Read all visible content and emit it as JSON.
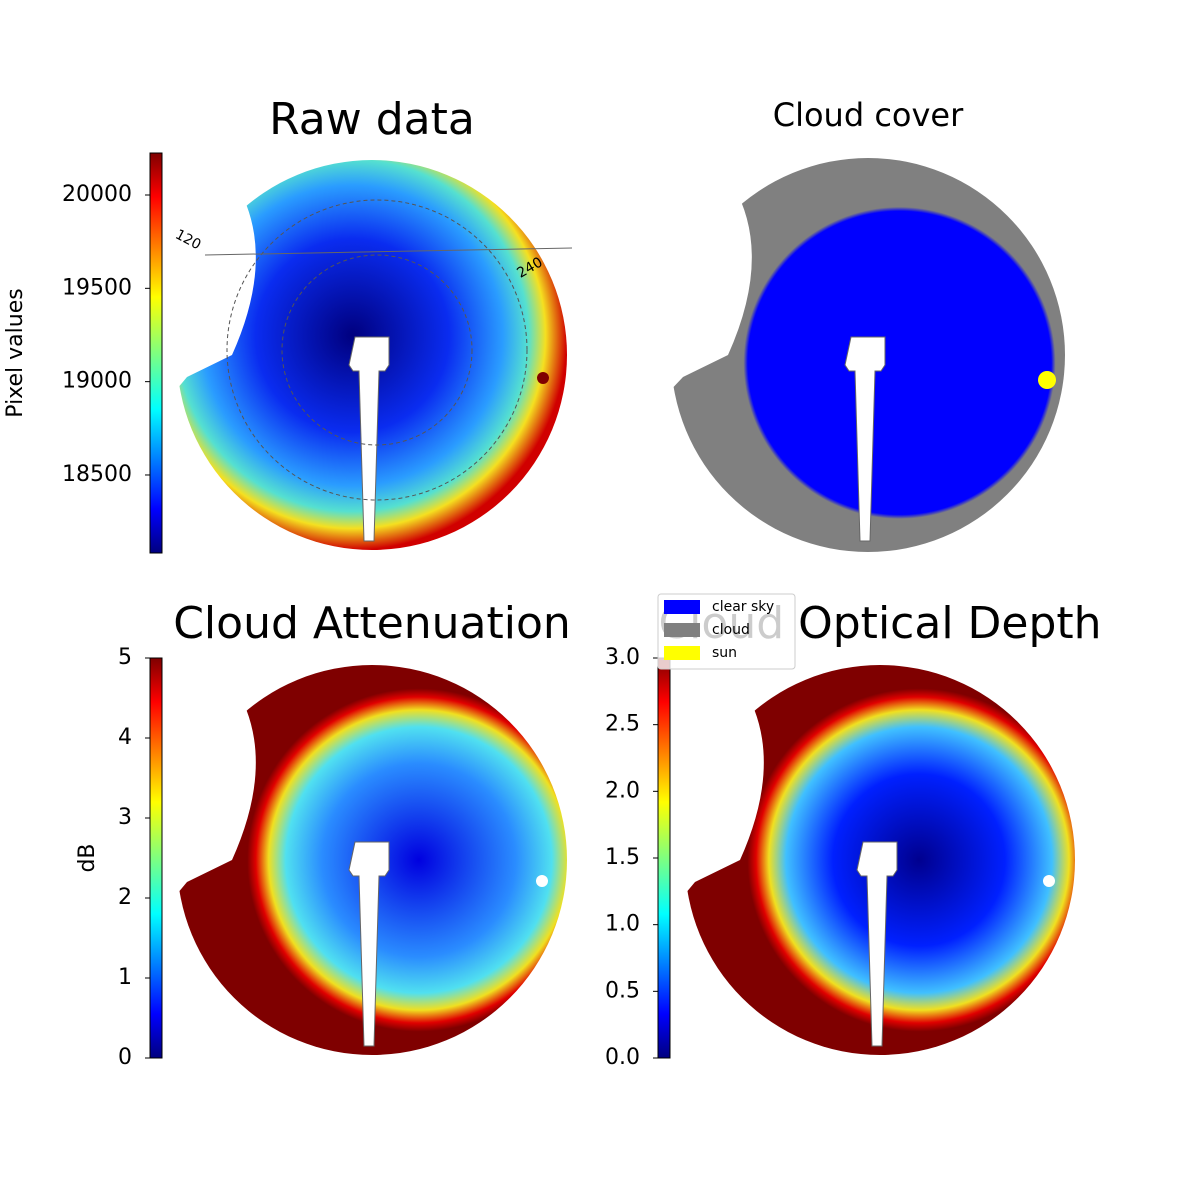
{
  "chart_data": [
    {
      "type": "image",
      "title": "Raw data",
      "colorbar_label": "Pixel values",
      "ylim": [
        18082,
        20225
      ],
      "yticks": [
        18500,
        19000,
        19500,
        20000
      ],
      "annotations": [
        "120",
        "240"
      ]
    },
    {
      "type": "image",
      "title": "Cloud cover",
      "series": [
        {
          "name": "clear sky",
          "color": "#0000ff"
        },
        {
          "name": "cloud",
          "color": "#808080"
        },
        {
          "name": "sun",
          "color": "#ffff00"
        }
      ]
    },
    {
      "type": "image",
      "title": "Cloud Attenuation",
      "colorbar_label": "dB",
      "ylim": [
        0,
        5
      ],
      "yticks": [
        0,
        1,
        2,
        3,
        4,
        5
      ]
    },
    {
      "type": "image",
      "title": "Cloud Optical Depth",
      "ylim": [
        0,
        3
      ],
      "yticks": [
        {
          "value": 0,
          "label": "0.0"
        },
        0.5,
        {
          "value": 1,
          "label": "1.0"
        },
        1.5,
        {
          "value": 2,
          "label": "2.0"
        },
        2.5,
        {
          "value": 3,
          "label": "3.0"
        }
      ]
    }
  ]
}
